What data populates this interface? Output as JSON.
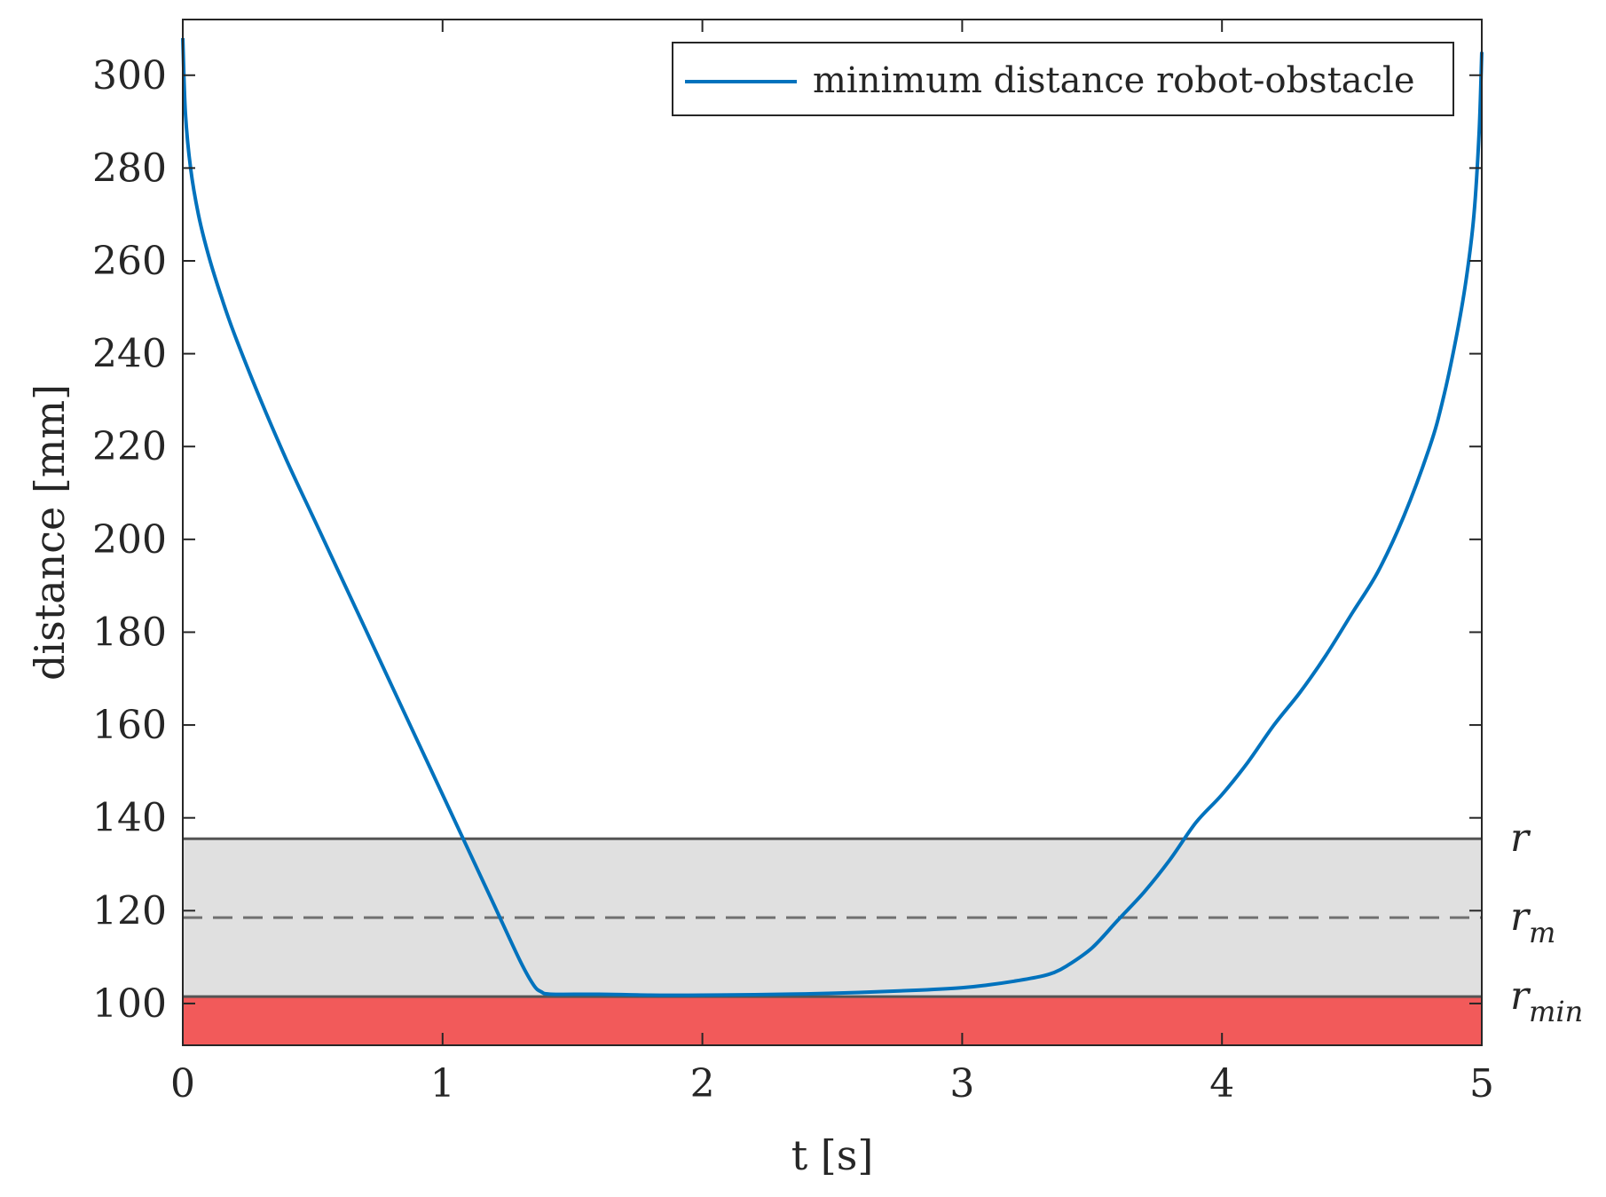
{
  "chart_data": {
    "type": "line",
    "title": "",
    "xlabel": "t [s]",
    "ylabel": "distance [mm]",
    "xlim": [
      0,
      5
    ],
    "ylim": [
      91,
      312
    ],
    "xticks": [
      0,
      1,
      2,
      3,
      4,
      5
    ],
    "yticks": [
      100,
      120,
      140,
      160,
      180,
      200,
      220,
      240,
      260,
      280,
      300
    ],
    "grid": false,
    "legend": {
      "position": "top-right",
      "entries": [
        "minimum distance robot-obstacle"
      ]
    },
    "colors": {
      "series": "#0072bd",
      "safe_zone": "#e0e0e0",
      "danger_zone": "#f25a5a",
      "boundary": "#555555",
      "dashed": "#707070"
    },
    "series": [
      {
        "name": "minimum distance robot-obstacle",
        "x": [
          0,
          0.01,
          0.03,
          0.06,
          0.1,
          0.15,
          0.2,
          0.3,
          0.4,
          0.5,
          0.6,
          0.7,
          0.8,
          0.9,
          1.0,
          1.1,
          1.2,
          1.3,
          1.35,
          1.38,
          1.42,
          1.6,
          1.8,
          2.0,
          2.2,
          2.5,
          2.8,
          3.0,
          3.1,
          3.2,
          3.3,
          3.35,
          3.4,
          3.5,
          3.6,
          3.7,
          3.8,
          3.9,
          4.0,
          4.1,
          4.2,
          4.3,
          4.4,
          4.5,
          4.6,
          4.7,
          4.8,
          4.85,
          4.9,
          4.94,
          4.97,
          4.99,
          5.0
        ],
        "y": [
          308,
          292,
          280,
          270,
          261,
          252,
          244,
          230,
          217,
          205,
          193,
          181,
          169,
          157,
          145,
          133,
          121,
          109,
          104,
          102.5,
          102,
          102,
          101.8,
          101.8,
          101.9,
          102.2,
          102.8,
          103.4,
          104,
          104.8,
          105.8,
          106.6,
          108,
          112,
          118,
          124,
          131,
          139,
          145,
          152,
          160,
          167,
          175,
          184,
          193,
          205,
          220,
          230,
          243,
          256,
          270,
          288,
          305
        ]
      }
    ],
    "bands": [
      {
        "label": "r",
        "sub": "",
        "value": 135.5
      },
      {
        "label": "r",
        "sub": "m",
        "value": 118.5
      },
      {
        "label": "r",
        "sub": "min",
        "value": 101.5
      }
    ]
  }
}
